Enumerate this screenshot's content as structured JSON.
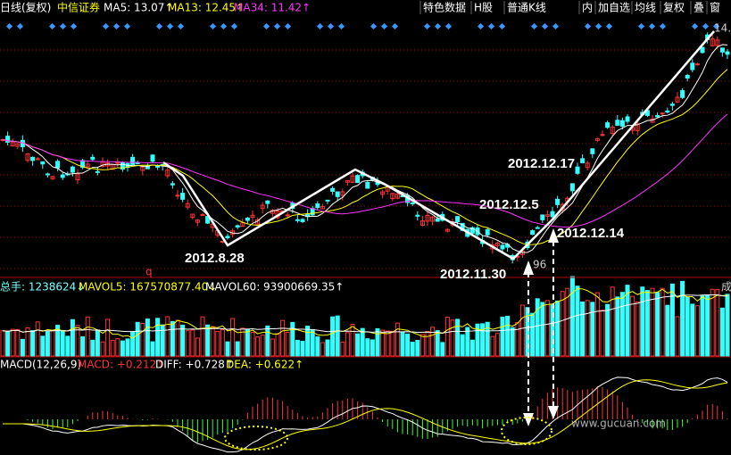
{
  "header": {
    "period": "日线(复权)",
    "stock": "中信证券",
    "ma5": "MA5: 13.07↑",
    "ma13": "MA13: 12.45↑",
    "ma34": "MA34: 11.42↑",
    "tabs": [
      "特色数据",
      "H股",
      "普通K线",
      "内",
      "加自选",
      "均线",
      "复权",
      "叠",
      "窗"
    ]
  },
  "annotations": {
    "d1217": "2012.12.17",
    "d125": "2012.12.5",
    "d1214": "2012.12.14",
    "d828": "2012.8.28",
    "d1130": "2012.11.30",
    "low": "96",
    "high": "14.",
    "mark": "q"
  },
  "volume": {
    "total": "总手: 1238624↓",
    "mavol5": "MAVOL5: 167570877.40↓",
    "mavol60": "MAVOL60: 93900669.35↑",
    "side": "成"
  },
  "macd": {
    "name": "MACD(12,26,9)",
    "macd": "MACD: +0.212↑",
    "diff": "DIFF: +0.728↑",
    "dea": "DEA: +0.622↑"
  },
  "watermark": "www.gucuan.com"
}
